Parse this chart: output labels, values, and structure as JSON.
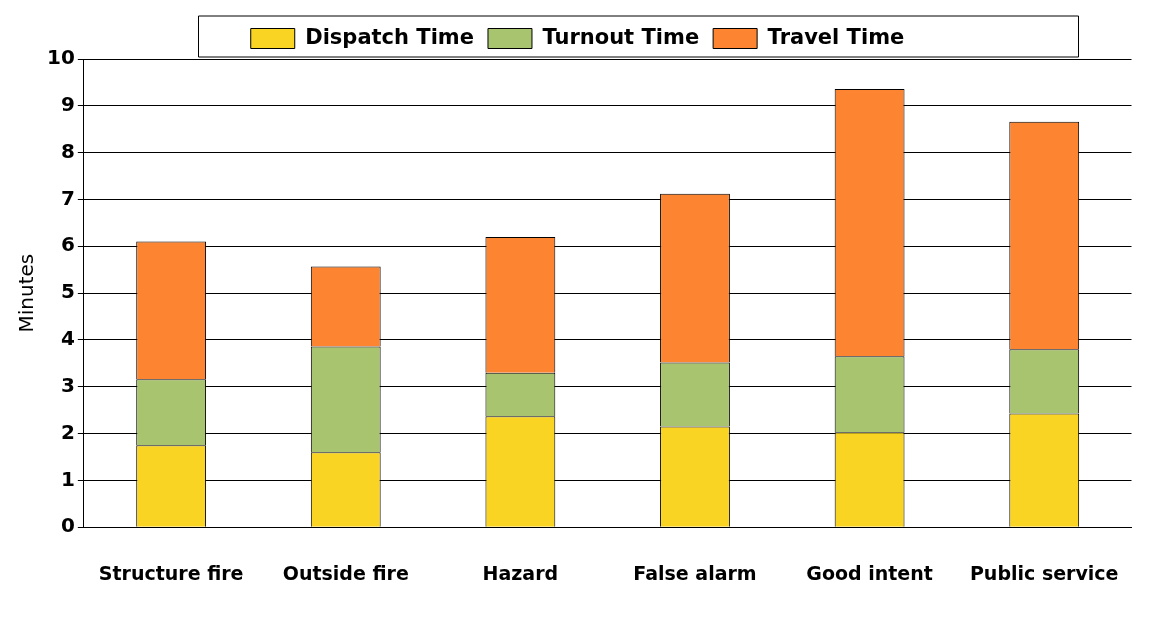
{
  "chart_data": {
    "type": "bar",
    "stacked": true,
    "ylabel": "Minutes",
    "categories": [
      "Structure fire",
      "Outside fire",
      "Hazard",
      "False alarm",
      "Good intent",
      "Public service"
    ],
    "series": [
      {
        "name": "Dispatch Time",
        "color": "#f9d423",
        "values": [
          1.75,
          1.6,
          2.37,
          2.15,
          2.03,
          2.43
        ]
      },
      {
        "name": "Turnout Time",
        "color": "#a9c46f",
        "values": [
          1.41,
          2.26,
          0.93,
          1.37,
          1.62,
          1.37
        ]
      },
      {
        "name": "Travel Time",
        "color": "#fd8532",
        "values": [
          2.94,
          1.71,
          2.9,
          3.6,
          5.71,
          4.86
        ]
      }
    ],
    "ylim": [
      0,
      10
    ],
    "yticks": [
      0,
      1,
      2,
      3,
      4,
      5,
      6,
      7,
      8,
      9,
      10
    ],
    "grid": "y",
    "legend": "top"
  }
}
